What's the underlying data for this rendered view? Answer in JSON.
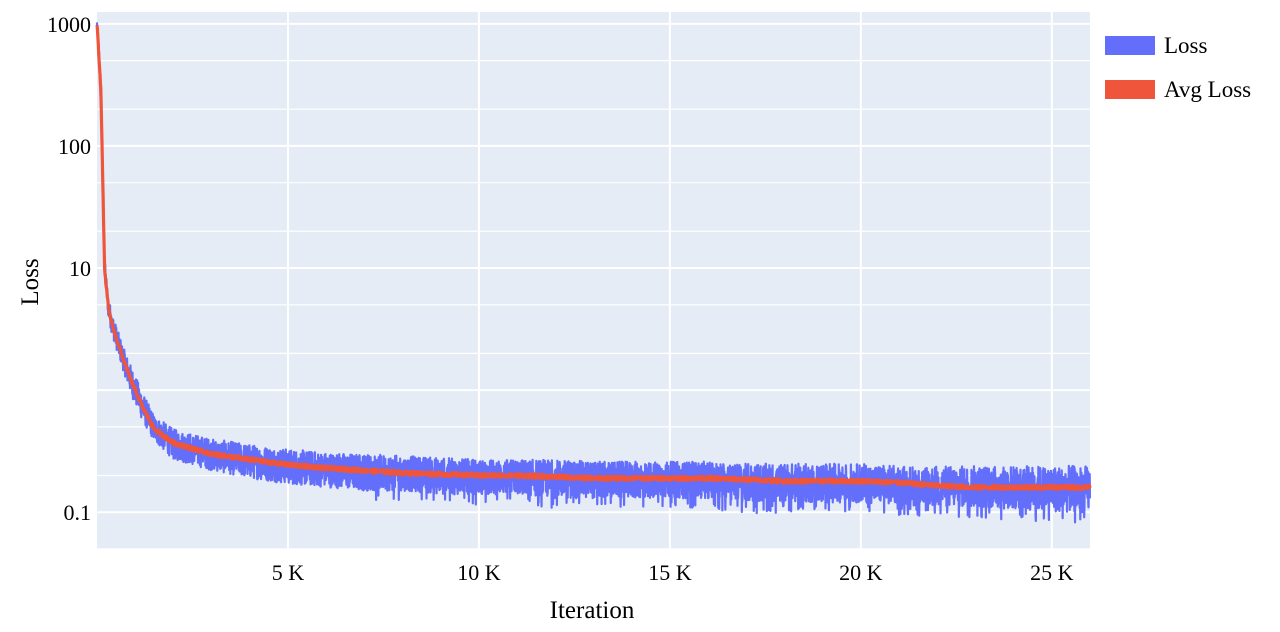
{
  "chart_data": {
    "type": "line",
    "title": "",
    "xlabel": "Iteration",
    "ylabel": "Loss",
    "xlim": [
      0,
      26000
    ],
    "ylim": [
      0.05,
      1250
    ],
    "y_scale": "log",
    "grid": true,
    "legend_position": "top-right",
    "colors": {
      "plot_background": "#e5ecf6",
      "grid": "#ffffff",
      "loss": "#636efa",
      "avg_loss": "#ef553b"
    },
    "x_ticks": [
      {
        "value": 5000,
        "label": "5 K"
      },
      {
        "value": 10000,
        "label": "10 K"
      },
      {
        "value": 15000,
        "label": "15 K"
      },
      {
        "value": 20000,
        "label": "20 K"
      },
      {
        "value": 25000,
        "label": "25 K"
      }
    ],
    "y_ticks": [
      {
        "value": 1000,
        "label": "1000"
      },
      {
        "value": 100,
        "label": "100"
      },
      {
        "value": 10,
        "label": "10"
      },
      {
        "value": 0.1,
        "label": "0.1"
      }
    ],
    "series": [
      {
        "name": "Loss",
        "color": "#636efa",
        "x": [
          0,
          100,
          200,
          300,
          400,
          500,
          700,
          900,
          1200,
          1500,
          2000,
          3000,
          4000,
          5000,
          6000,
          7000,
          8000,
          9000,
          10000,
          11000,
          12000,
          13000,
          14000,
          15000,
          16000,
          17000,
          18000,
          19000,
          20000,
          21000,
          22000,
          23000,
          24000,
          25000,
          26000
        ],
        "y_min": [
          900,
          200,
          8,
          3.8,
          2.8,
          2.2,
          1.4,
          0.9,
          0.55,
          0.38,
          0.27,
          0.22,
          0.19,
          0.17,
          0.16,
          0.15,
          0.15,
          0.14,
          0.14,
          0.14,
          0.13,
          0.13,
          0.13,
          0.13,
          0.13,
          0.12,
          0.12,
          0.12,
          0.12,
          0.115,
          0.11,
          0.11,
          0.105,
          0.1,
          0.1
        ],
        "y_max": [
          1100,
          400,
          12,
          5.8,
          4.2,
          3.4,
          2.2,
          1.55,
          0.95,
          0.62,
          0.48,
          0.4,
          0.36,
          0.33,
          0.31,
          0.3,
          0.29,
          0.28,
          0.27,
          0.27,
          0.27,
          0.26,
          0.26,
          0.26,
          0.26,
          0.25,
          0.25,
          0.25,
          0.25,
          0.24,
          0.24,
          0.24,
          0.24,
          0.24,
          0.24
        ]
      },
      {
        "name": "Avg Loss",
        "color": "#ef553b",
        "x": [
          0,
          100,
          200,
          300,
          400,
          500,
          700,
          900,
          1200,
          1500,
          2000,
          3000,
          4000,
          5000,
          6000,
          7000,
          8000,
          9000,
          10000,
          11000,
          12000,
          13000,
          14000,
          15000,
          16000,
          17000,
          18000,
          19000,
          20000,
          21000,
          22000,
          23000,
          24000,
          25000,
          26000
        ],
        "y": [
          1000,
          300,
          9.5,
          4.7,
          3.4,
          2.7,
          1.75,
          1.18,
          0.72,
          0.48,
          0.37,
          0.3,
          0.27,
          0.245,
          0.23,
          0.22,
          0.21,
          0.205,
          0.2,
          0.2,
          0.195,
          0.19,
          0.19,
          0.19,
          0.19,
          0.185,
          0.18,
          0.18,
          0.18,
          0.175,
          0.165,
          0.16,
          0.16,
          0.16,
          0.16
        ]
      }
    ]
  }
}
